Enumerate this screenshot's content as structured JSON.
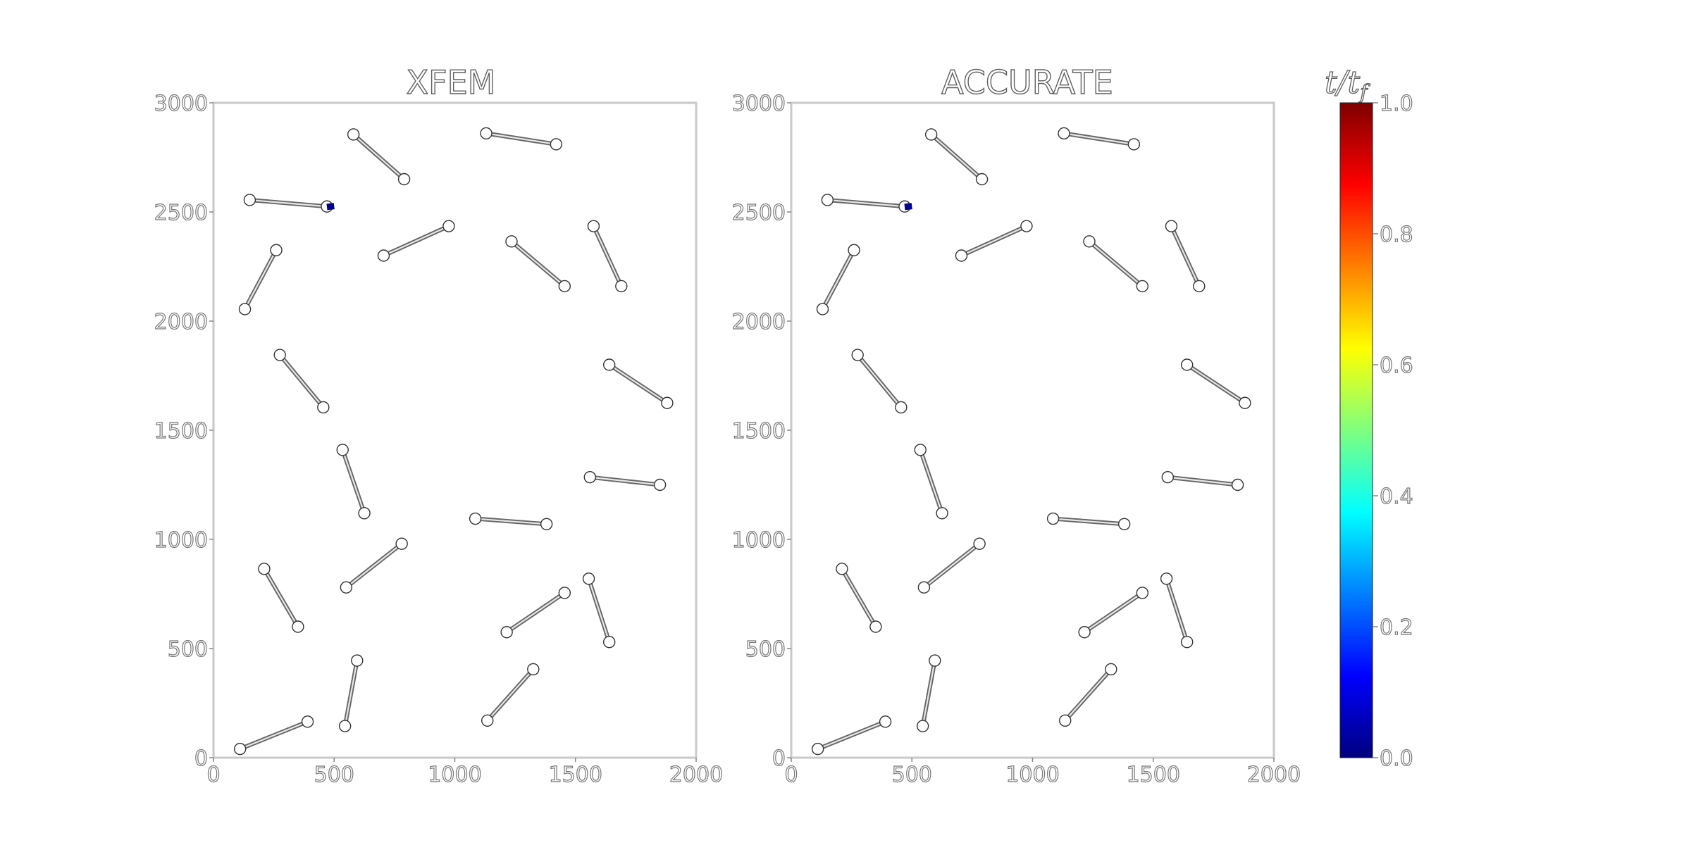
{
  "chart_data": {
    "type": "scatter",
    "axes": {
      "xlim": [
        0,
        2000
      ],
      "ylim": [
        0,
        3000
      ],
      "xticks": [
        "0",
        "500",
        "1000",
        "1500",
        "2000"
      ],
      "yticks": [
        "0",
        "500",
        "1000",
        "1500",
        "2000",
        "2500",
        "3000"
      ],
      "grid": false
    },
    "panels": [
      {
        "title": "XFEM",
        "crack_growth": {
          "x1": 470,
          "y1": 2523,
          "x2": 500,
          "y2": 2527,
          "color": "#00008f"
        }
      },
      {
        "title": "ACCURATE",
        "crack_growth": {
          "x1": 470,
          "y1": 2523,
          "x2": 500,
          "y2": 2527,
          "color": "#00008f"
        }
      }
    ],
    "cracks": [
      {
        "x1": 580,
        "y1": 2855,
        "x2": 790,
        "y2": 2650
      },
      {
        "x1": 1130,
        "y1": 2860,
        "x2": 1420,
        "y2": 2810
      },
      {
        "x1": 150,
        "y1": 2555,
        "x2": 470,
        "y2": 2525
      },
      {
        "x1": 705,
        "y1": 2300,
        "x2": 975,
        "y2": 2435
      },
      {
        "x1": 1235,
        "y1": 2365,
        "x2": 1455,
        "y2": 2160
      },
      {
        "x1": 1575,
        "y1": 2435,
        "x2": 1690,
        "y2": 2160
      },
      {
        "x1": 130,
        "y1": 2055,
        "x2": 260,
        "y2": 2325
      },
      {
        "x1": 275,
        "y1": 1845,
        "x2": 455,
        "y2": 1605
      },
      {
        "x1": 1640,
        "y1": 1800,
        "x2": 1880,
        "y2": 1625
      },
      {
        "x1": 535,
        "y1": 1410,
        "x2": 625,
        "y2": 1120
      },
      {
        "x1": 1560,
        "y1": 1285,
        "x2": 1850,
        "y2": 1250
      },
      {
        "x1": 1085,
        "y1": 1095,
        "x2": 1380,
        "y2": 1070
      },
      {
        "x1": 210,
        "y1": 865,
        "x2": 350,
        "y2": 600
      },
      {
        "x1": 550,
        "y1": 780,
        "x2": 780,
        "y2": 980
      },
      {
        "x1": 1555,
        "y1": 820,
        "x2": 1640,
        "y2": 530
      },
      {
        "x1": 1215,
        "y1": 575,
        "x2": 1455,
        "y2": 755
      },
      {
        "x1": 545,
        "y1": 145,
        "x2": 595,
        "y2": 445
      },
      {
        "x1": 1135,
        "y1": 170,
        "x2": 1325,
        "y2": 405
      },
      {
        "x1": 110,
        "y1": 40,
        "x2": 390,
        "y2": 165
      }
    ]
  },
  "colorbar": {
    "title_main": "t/t",
    "title_sub": "f",
    "range": [
      0.0,
      1.0
    ],
    "ticks": [
      "0.0",
      "0.2",
      "0.4",
      "0.6",
      "0.8",
      "1.0"
    ],
    "colormap": [
      "#00007f",
      "#0000ff",
      "#007fff",
      "#00ffff",
      "#7fff7f",
      "#ffff00",
      "#ff7f00",
      "#ff0000",
      "#7f0000"
    ]
  }
}
